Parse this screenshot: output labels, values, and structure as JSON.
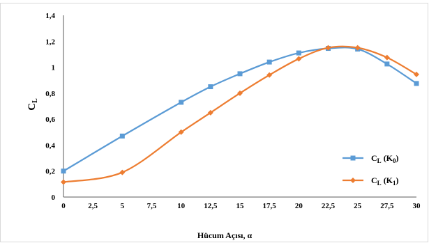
{
  "chart_data": {
    "type": "line",
    "xlabel": "Hücum Açısı, α",
    "ylabel": {
      "main": "C",
      "sub": "L"
    },
    "xlim": [
      0,
      30
    ],
    "ylim": [
      0,
      1.4
    ],
    "x_ticks": [
      "0",
      "2,5",
      "5",
      "7,5",
      "10",
      "12,5",
      "15",
      "17,5",
      "20",
      "22,5",
      "25",
      "27,5",
      "30"
    ],
    "y_ticks": [
      "0",
      "0,2",
      "0,4",
      "0,6",
      "0,8",
      "1",
      "1,2",
      "1,4"
    ],
    "grid": false,
    "legend_position": "right",
    "series": [
      {
        "name": "CL (K0)",
        "legend_main": "C",
        "legend_sub": "L",
        "legend_mid": " (K",
        "legend_sub2": "0",
        "legend_end": ")",
        "color": "#5b9bd5",
        "marker": "square",
        "x": [
          0,
          5,
          10,
          12.5,
          15,
          17.5,
          20,
          22.5,
          25,
          27.5,
          30
        ],
        "y": [
          0.2,
          0.47,
          0.73,
          0.85,
          0.95,
          1.04,
          1.11,
          1.145,
          1.14,
          1.025,
          0.875
        ]
      },
      {
        "name": "CL (K1)",
        "legend_main": "C",
        "legend_sub": "L",
        "legend_mid": " (K",
        "legend_sub2": "1",
        "legend_end": ")",
        "color": "#ed7d31",
        "marker": "diamond",
        "x": [
          0,
          5,
          10,
          12.5,
          15,
          17.5,
          20,
          22.5,
          25,
          27.5,
          30
        ],
        "y": [
          0.115,
          0.19,
          0.5,
          0.65,
          0.8,
          0.94,
          1.065,
          1.15,
          1.15,
          1.075,
          0.945
        ]
      }
    ]
  }
}
